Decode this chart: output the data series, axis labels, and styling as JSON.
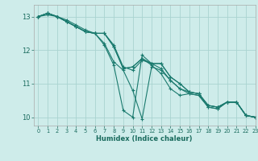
{
  "xlabel": "Humidex (Indice chaleur)",
  "bg_color": "#ceecea",
  "grid_color": "#aad4d0",
  "line_color": "#1a7a6e",
  "xlim": [
    -0.5,
    23
  ],
  "ylim": [
    9.75,
    13.35
  ],
  "yticks": [
    10,
    11,
    12,
    13
  ],
  "xticks": [
    0,
    1,
    2,
    3,
    4,
    5,
    6,
    7,
    8,
    9,
    10,
    11,
    12,
    13,
    14,
    15,
    16,
    17,
    18,
    19,
    20,
    21,
    22,
    23
  ],
  "lines": [
    {
      "x": [
        0,
        1,
        2,
        3,
        4,
        5,
        6,
        7,
        8,
        9,
        10,
        11,
        12,
        13,
        14,
        15,
        16,
        17,
        18,
        19,
        20,
        21,
        22,
        23
      ],
      "y": [
        13.0,
        13.1,
        13.0,
        12.9,
        12.75,
        12.6,
        12.5,
        12.15,
        11.55,
        10.2,
        10.0,
        11.85,
        11.6,
        11.6,
        11.2,
        11.0,
        10.75,
        10.7,
        10.35,
        10.3,
        10.45,
        10.45,
        10.05,
        10.0
      ]
    },
    {
      "x": [
        0,
        1,
        2,
        3,
        4,
        5,
        6,
        7,
        8,
        9,
        10,
        11,
        12,
        13,
        14,
        15,
        16,
        17,
        18,
        19,
        20,
        21,
        22,
        23
      ],
      "y": [
        13.0,
        13.1,
        13.0,
        12.85,
        12.7,
        12.55,
        12.5,
        12.2,
        11.65,
        11.4,
        10.8,
        9.95,
        11.5,
        11.4,
        11.1,
        10.85,
        10.7,
        10.65,
        10.3,
        10.25,
        10.45,
        10.45,
        10.05,
        10.0
      ]
    },
    {
      "x": [
        0,
        1,
        2,
        3,
        4,
        5,
        6,
        7,
        8,
        9,
        10,
        11,
        12,
        13,
        14,
        15,
        16,
        17,
        18,
        19,
        20,
        21,
        22,
        23
      ],
      "y": [
        13.0,
        13.1,
        13.0,
        12.85,
        12.7,
        12.55,
        12.5,
        12.5,
        12.1,
        11.45,
        11.5,
        11.75,
        11.6,
        11.6,
        11.2,
        11.0,
        10.75,
        10.7,
        10.35,
        10.3,
        10.45,
        10.45,
        10.05,
        10.0
      ]
    },
    {
      "x": [
        0,
        1,
        2,
        3,
        4,
        5,
        6,
        7,
        8,
        9,
        10,
        11,
        12,
        13,
        14,
        15,
        16,
        17,
        18,
        19,
        20,
        21,
        22,
        23
      ],
      "y": [
        13.0,
        13.1,
        13.0,
        12.85,
        12.7,
        12.55,
        12.5,
        12.5,
        12.1,
        11.45,
        11.5,
        11.75,
        11.55,
        11.3,
        10.85,
        10.65,
        10.7,
        10.65,
        10.3,
        10.25,
        10.45,
        10.45,
        10.05,
        10.0
      ]
    },
    {
      "x": [
        0,
        1,
        2,
        3,
        4,
        5,
        6,
        7,
        8,
        9,
        10,
        11,
        12,
        13,
        14,
        15,
        16,
        17,
        18,
        19,
        20,
        21,
        22,
        23
      ],
      "y": [
        13.0,
        13.05,
        13.0,
        12.85,
        12.7,
        12.55,
        12.5,
        12.5,
        12.15,
        11.5,
        11.4,
        11.7,
        11.6,
        11.45,
        11.1,
        10.85,
        10.75,
        10.7,
        10.35,
        10.3,
        10.45,
        10.45,
        10.05,
        10.0
      ]
    }
  ]
}
